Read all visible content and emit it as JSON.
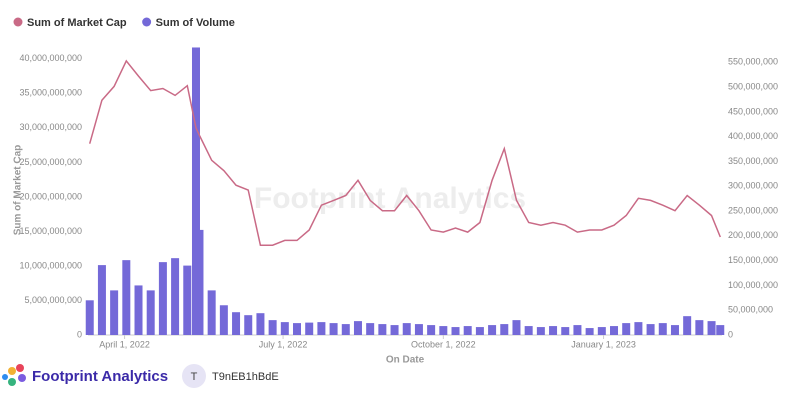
{
  "chart_data": {
    "type": "bar_line",
    "y_axis_label": "Sum of Market Cap",
    "x_axis_label": "On Date",
    "legend": "top-left",
    "x": [
      "2022-03-12",
      "2022-03-19",
      "2022-03-26",
      "2022-04-02",
      "2022-04-09",
      "2022-04-16",
      "2022-04-23",
      "2022-04-30",
      "2022-05-07",
      "2022-05-12",
      "2022-05-14",
      "2022-05-21",
      "2022-05-28",
      "2022-06-04",
      "2022-06-11",
      "2022-06-18",
      "2022-06-25",
      "2022-07-02",
      "2022-07-09",
      "2022-07-16",
      "2022-07-23",
      "2022-07-30",
      "2022-08-06",
      "2022-08-13",
      "2022-08-20",
      "2022-08-27",
      "2022-09-03",
      "2022-09-10",
      "2022-09-17",
      "2022-09-24",
      "2022-10-01",
      "2022-10-08",
      "2022-10-15",
      "2022-10-22",
      "2022-10-29",
      "2022-11-05",
      "2022-11-12",
      "2022-11-19",
      "2022-11-26",
      "2022-12-03",
      "2022-12-10",
      "2022-12-17",
      "2022-12-24",
      "2022-12-31",
      "2023-01-07",
      "2023-01-14",
      "2023-01-21",
      "2023-01-28",
      "2023-02-04",
      "2023-02-11",
      "2023-02-18",
      "2023-02-25",
      "2023-03-04",
      "2023-03-09"
    ],
    "xlim": [
      "2022-03-11",
      "2023-03-10"
    ],
    "xticks": [
      {
        "value": "2022-04-01",
        "label": "April 1, 2022"
      },
      {
        "value": "2022-07-01",
        "label": "July 1, 2022"
      },
      {
        "value": "2022-10-01",
        "label": "October 1, 2022"
      },
      {
        "value": "2023-01-01",
        "label": "January 1, 2023"
      }
    ],
    "ylim": [
      0,
      42000000000
    ],
    "yticks": [
      0,
      {
        "value": 5000000000,
        "label": "5,000,000,000"
      },
      {
        "value": 10000000000,
        "label": "10,000,000,000"
      },
      {
        "value": 15000000000,
        "label": "15,000,000,000"
      },
      {
        "value": 20000000000,
        "label": "20,000,000,000"
      },
      {
        "value": 25000000000,
        "label": "25,000,000,000"
      },
      {
        "value": 30000000000,
        "label": "30,000,000,000"
      },
      {
        "value": 35000000000,
        "label": "35,000,000,000"
      },
      {
        "value": 40000000000,
        "label": "40,000,000,000"
      }
    ],
    "y2lim": [
      0,
      585000000
    ],
    "y2ticks": [
      0,
      {
        "value": 50000000,
        "label": "50,000,000"
      },
      {
        "value": 100000000,
        "label": "100,000,000"
      },
      {
        "value": 150000000,
        "label": "150,000,000"
      },
      {
        "value": 200000000,
        "label": "200,000,000"
      },
      {
        "value": 250000000,
        "label": "250,000,000"
      },
      {
        "value": 300000000,
        "label": "300,000,000"
      },
      {
        "value": 350000000,
        "label": "350,000,000"
      },
      {
        "value": 400000000,
        "label": "400,000,000"
      },
      {
        "value": 450000000,
        "label": "450,000,000"
      },
      {
        "value": 500000000,
        "label": "500,000,000"
      },
      {
        "value": 550000000,
        "label": "550,000,000"
      }
    ],
    "series": [
      {
        "name": "Sum of Market Cap",
        "color": "#c96a86",
        "kind": "line",
        "axis": "y",
        "values": [
          27700000000,
          34000000000,
          36000000000,
          39700000000,
          37500000000,
          35400000000,
          35700000000,
          34700000000,
          36100000000,
          30000000000,
          28900000000,
          25300000000,
          23800000000,
          21700000000,
          21000000000,
          13000000000,
          13000000000,
          13700000000,
          13700000000,
          15200000000,
          18800000000,
          19500000000,
          20200000000,
          22400000000,
          19500000000,
          18000000000,
          18000000000,
          20200000000,
          18000000000,
          15200000000,
          14900000000,
          15500000000,
          14900000000,
          16300000000,
          22400000000,
          27000000000,
          19500000000,
          16300000000,
          15900000000,
          16300000000,
          15900000000,
          14900000000,
          15200000000,
          15200000000,
          15900000000,
          17300000000,
          19800000000,
          19500000000,
          18800000000,
          18000000000,
          20200000000,
          18800000000,
          17300000000,
          14200000000
        ]
      },
      {
        "name": "Sum of Volume",
        "color": "#7469d8",
        "kind": "bar",
        "axis": "y2",
        "values": [
          70000000,
          141000000,
          90000000,
          151000000,
          100000000,
          90000000,
          147000000,
          155000000,
          140000000,
          580000000,
          212000000,
          90000000,
          60000000,
          46000000,
          40000000,
          44000000,
          30000000,
          26000000,
          24000000,
          25000000,
          26000000,
          24000000,
          22000000,
          28000000,
          24000000,
          22000000,
          20000000,
          24000000,
          22000000,
          20000000,
          18000000,
          16000000,
          18000000,
          16000000,
          20000000,
          22000000,
          30000000,
          18000000,
          16000000,
          18000000,
          16000000,
          20000000,
          14000000,
          16000000,
          18000000,
          24000000,
          26000000,
          22000000,
          24000000,
          20000000,
          38000000,
          30000000,
          28000000,
          20000000
        ]
      }
    ]
  },
  "watermark": "Footprint Analytics",
  "footer": {
    "brand": "Footprint Analytics",
    "avatar": "T",
    "user": "T9nEB1hBdE"
  }
}
